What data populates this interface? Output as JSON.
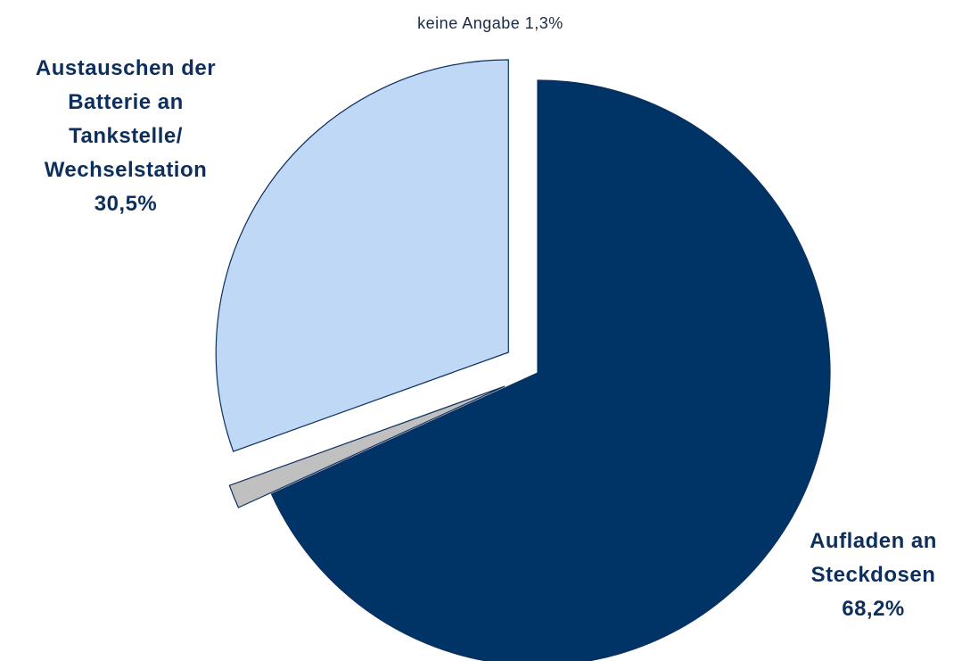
{
  "chart_data": {
    "type": "pie",
    "title": "",
    "slices": [
      {
        "label_lines": [
          "Aufladen an",
          "Steckdosen"
        ],
        "value_label": "68,2%",
        "value": 68.2,
        "color": "#003366",
        "exploded": false
      },
      {
        "label_lines": [
          "keine Angabe 1,3%"
        ],
        "value_label": "",
        "value": 1.3,
        "color": "#c0c0c0",
        "exploded": true
      },
      {
        "label_lines": [
          "Austauschen der",
          "Batterie an",
          "Tankstelle/",
          "Wechselstation"
        ],
        "value_label": "30,5%",
        "value": 30.5,
        "color": "#bed8f6",
        "exploded": true
      }
    ],
    "slice_order": "clockwise from 12 o'clock starting with 68,2%",
    "legend": "none"
  }
}
